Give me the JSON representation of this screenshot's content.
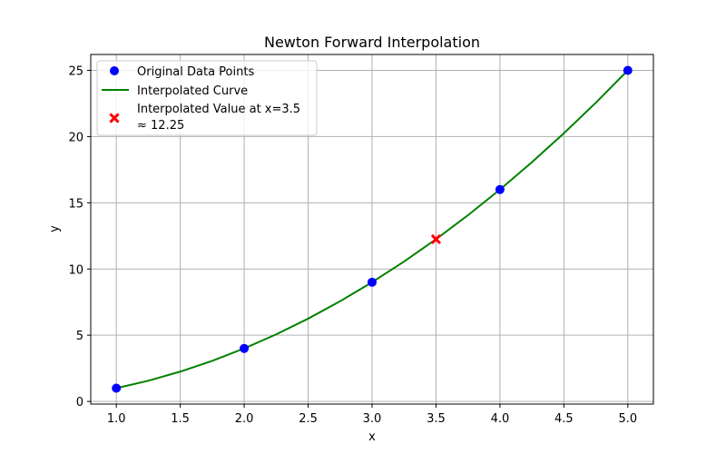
{
  "chart_data": {
    "type": "line",
    "title": "Newton Forward Interpolation",
    "xlabel": "x",
    "ylabel": "y",
    "xlim": [
      0.8,
      5.2
    ],
    "ylim": [
      -0.2,
      26.2
    ],
    "xticks": [
      1.0,
      1.5,
      2.0,
      2.5,
      3.0,
      3.5,
      4.0,
      4.5,
      5.0
    ],
    "xtick_labels": [
      "1.0",
      "1.5",
      "2.0",
      "2.5",
      "3.0",
      "3.5",
      "4.0",
      "4.5",
      "5.0"
    ],
    "yticks": [
      0,
      5,
      10,
      15,
      20,
      25
    ],
    "ytick_labels": [
      "0",
      "5",
      "10",
      "15",
      "20",
      "25"
    ],
    "grid": true,
    "legend_position": "top-left",
    "series": [
      {
        "name": "Original Data Points",
        "kind": "scatter",
        "color": "#0000ff",
        "x": [
          1,
          2,
          3,
          4,
          5
        ],
        "y": [
          1,
          4,
          9,
          16,
          25
        ]
      },
      {
        "name": "Interpolated Curve",
        "kind": "line",
        "color": "#008000",
        "x": [
          1.0,
          1.25,
          1.5,
          1.75,
          2.0,
          2.25,
          2.5,
          2.75,
          3.0,
          3.25,
          3.5,
          3.75,
          4.0,
          4.25,
          4.5,
          4.75,
          5.0
        ],
        "y": [
          1.0,
          1.5625,
          2.25,
          3.0625,
          4.0,
          5.0625,
          6.25,
          7.5625,
          9.0,
          10.5625,
          12.25,
          14.0625,
          16.0,
          18.0625,
          20.25,
          22.5625,
          25.0
        ]
      },
      {
        "name": "Interpolated Value at x=3.5\n≈ 12.25",
        "name_lines": [
          "Interpolated Value at x=3.5",
          "≈ 12.25"
        ],
        "kind": "marker-x",
        "color": "#ff0000",
        "x": [
          3.5
        ],
        "y": [
          12.25
        ]
      }
    ]
  }
}
